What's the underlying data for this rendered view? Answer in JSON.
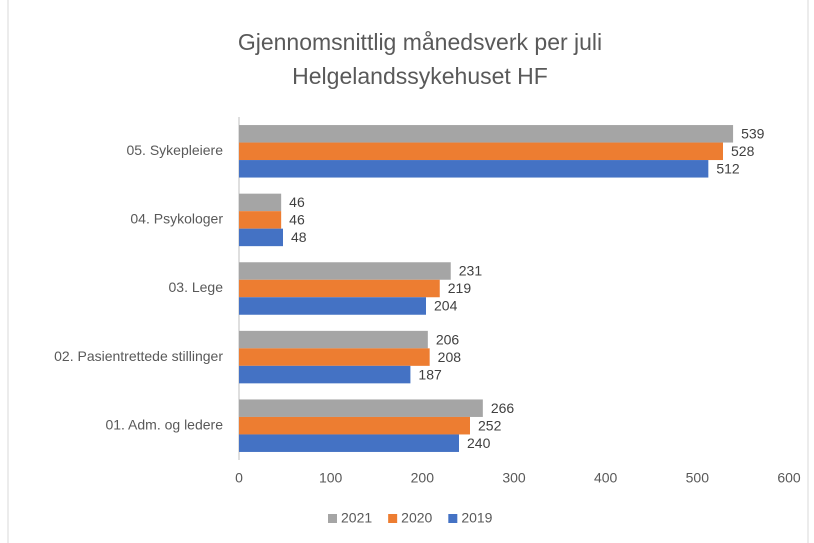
{
  "chart_data": {
    "type": "hbar",
    "title": [
      "Gjennomsnittlig månedsverk per juli",
      "Helgelandssykehuset HF"
    ],
    "categories": [
      "05. Sykepleiere",
      "04. Psykologer",
      "03. Lege",
      "02. Pasientrettede stillinger",
      "01. Adm. og ledere"
    ],
    "series": [
      {
        "name": "2021",
        "color": "#a5a5a5",
        "values": [
          539,
          46,
          231,
          206,
          266
        ]
      },
      {
        "name": "2020",
        "color": "#ed7d31",
        "values": [
          528,
          46,
          219,
          208,
          252
        ]
      },
      {
        "name": "2019",
        "color": "#4472c4",
        "values": [
          512,
          48,
          204,
          187,
          240
        ]
      }
    ],
    "xlim": [
      0,
      600
    ],
    "xticks": [
      0,
      100,
      200,
      300,
      400,
      500,
      600
    ],
    "legend": "bottom"
  }
}
